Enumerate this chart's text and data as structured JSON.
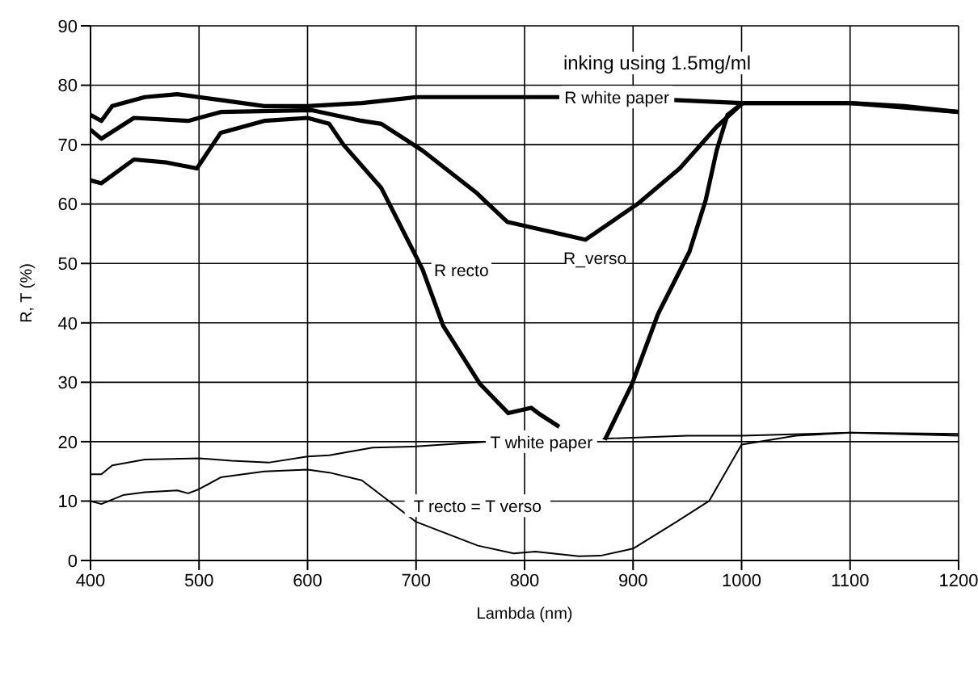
{
  "chart_data": {
    "type": "line",
    "title": "inking using 1.5mg/ml",
    "xlabel": "Lambda (nm)",
    "ylabel": "R, T (%)",
    "xlim": [
      400,
      1200
    ],
    "xticks": [
      400,
      500,
      600,
      700,
      800,
      900,
      1000,
      1100,
      1200
    ],
    "ylim": [
      0,
      90
    ],
    "yticks": [
      0,
      10,
      20,
      30,
      40,
      50,
      60,
      70,
      80,
      90
    ],
    "grid": true,
    "marker": "none",
    "line_style": "solid",
    "series": [
      {
        "name": "R white paper",
        "color": "#000000",
        "x": [
          400,
          410,
          420,
          450,
          480,
          520,
          560,
          600,
          650,
          700,
          750,
          800,
          832,
          833,
          938,
          1000,
          1050,
          1100,
          1150,
          1200
        ],
        "values": [
          75,
          74,
          76.5,
          78,
          78.5,
          77.5,
          76.5,
          76.5,
          77,
          78,
          78,
          78,
          78,
          null,
          77.5,
          77,
          77,
          77,
          76.5,
          75.5
        ]
      },
      {
        "name": "R_verso",
        "color": "#000000",
        "x": [
          400,
          410,
          440,
          490,
          500,
          520,
          604,
          650,
          668,
          706,
          755,
          784,
          820,
          856,
          904,
          943,
          977,
          1001,
          1050,
          1100,
          1200
        ],
        "values": [
          72.5,
          71,
          74.5,
          74,
          74.5,
          75.5,
          75.8,
          74,
          73.5,
          69,
          62,
          57,
          55.5,
          54,
          60,
          66,
          73,
          77,
          77,
          77,
          75.5
        ]
      },
      {
        "name": "R recto",
        "color": "#000000",
        "x": [
          400,
          410,
          440,
          470,
          498,
          520,
          560,
          600,
          620,
          633,
          668,
          706,
          725,
          759,
          785,
          806,
          815,
          832,
          833,
          874,
          899,
          923,
          952,
          967,
          977,
          987,
          1001
        ],
        "values": [
          64,
          63.5,
          67.5,
          67,
          66,
          72,
          74,
          74.5,
          73.5,
          70,
          62.7,
          49,
          39.5,
          29.7,
          24.8,
          25.7,
          24.5,
          22.5,
          null,
          20.3,
          29.7,
          41.5,
          52,
          60.7,
          69,
          75,
          77
        ]
      },
      {
        "name": "T white paper",
        "color": "#000000",
        "x": [
          400,
          410,
          420,
          450,
          500,
          530,
          565,
          600,
          620,
          660,
          700,
          765,
          766,
          872,
          950,
          1000,
          1100,
          1200
        ],
        "values": [
          14.5,
          14.5,
          16,
          17,
          17.2,
          16.8,
          16.5,
          17.5,
          17.7,
          19,
          19.2,
          20,
          null,
          20.5,
          21,
          21,
          21.5,
          21
        ]
      },
      {
        "name": "T recto = T verso",
        "color": "#000000",
        "x": [
          400,
          410,
          430,
          450,
          480,
          490,
          500,
          520,
          560,
          600,
          620,
          650,
          700,
          757,
          790,
          810,
          850,
          870,
          900,
          940,
          970,
          1000,
          1050,
          1100,
          1200
        ],
        "values": [
          10,
          9.5,
          11,
          11.5,
          11.8,
          11.3,
          12,
          14,
          15,
          15.3,
          14.8,
          13.5,
          6.5,
          2.5,
          1.2,
          1.5,
          0.7,
          0.8,
          2,
          6.5,
          10,
          19.5,
          21,
          21.5,
          21.3
        ]
      }
    ]
  }
}
